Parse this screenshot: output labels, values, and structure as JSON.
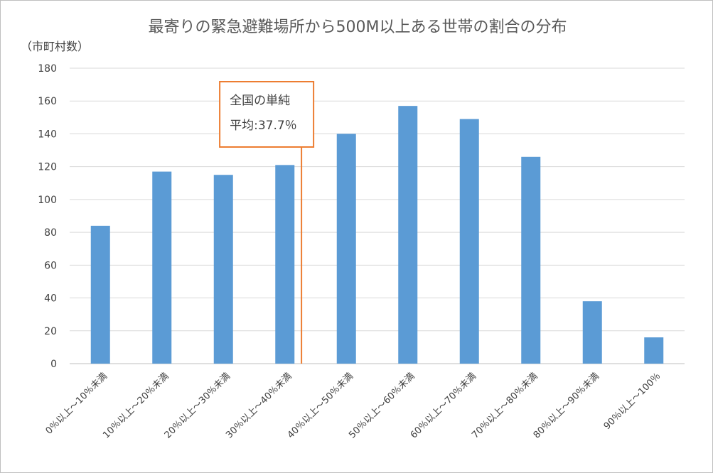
{
  "chart_data": {
    "type": "bar",
    "title": "最寄りの緊急避難場所から500M以上ある世帯の割合の分布",
    "ylabel": "（市町村数）",
    "xlabel": "",
    "ylim": [
      0,
      180
    ],
    "yticks": [
      0,
      20,
      40,
      60,
      80,
      100,
      120,
      140,
      160,
      180
    ],
    "grid": true,
    "categories": [
      "0％以上～10％未満",
      "10％以上～20％未満",
      "20％以上～30％未満",
      "30％以上～40％未満",
      "40％以上～50％未満",
      "50％以上～60％未満",
      "60％以上～70％未満",
      "70％以上～80％未満",
      "80％以上～90％未満",
      "90％以上～100％"
    ],
    "values": [
      84,
      117,
      115,
      121,
      140,
      157,
      149,
      126,
      38,
      16
    ],
    "bar_color": "#5b9bd5",
    "annotation": {
      "line1": "全国の単純",
      "line2": "平均:37.7％",
      "value": 37.7,
      "color": "#ed7d31"
    }
  }
}
